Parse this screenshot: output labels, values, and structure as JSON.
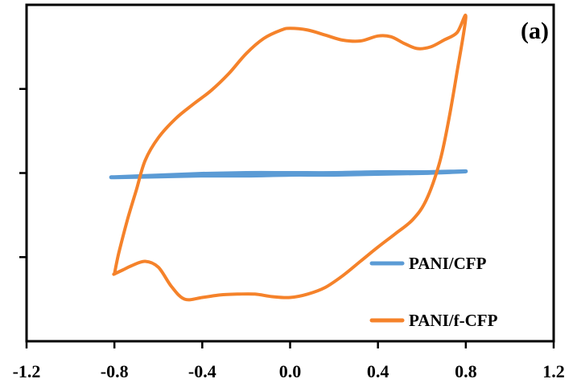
{
  "chart_data": {
    "type": "line",
    "panel_label": "(a)",
    "xlabel": "",
    "ylabel": "",
    "xlim": [
      -1.2,
      1.2
    ],
    "x_ticks": [
      "-1.2",
      "-0.8",
      "-0.4",
      "0.0",
      "0.4",
      "0.8",
      "1.2"
    ],
    "x_tick_values": [
      -1.2,
      -0.8,
      -0.4,
      0.0,
      0.4,
      0.8,
      1.2
    ],
    "ylim": [
      -2,
      2
    ],
    "y_ticks": [
      -1,
      0,
      1
    ],
    "y_tick_labels_visible": false,
    "grid": false,
    "legend": {
      "position": "bottom-right"
    },
    "series": [
      {
        "name": "PANI/CFP",
        "color": "#5b9bd5",
        "x": [
          -0.8,
          -0.6,
          -0.4,
          -0.2,
          0.0,
          0.2,
          0.4,
          0.6,
          0.8,
          0.6,
          0.4,
          0.2,
          0.0,
          -0.2,
          -0.4,
          -0.6,
          -0.8
        ],
        "y": [
          -0.05,
          -0.03,
          -0.01,
          0.0,
          0.0,
          0.0,
          0.01,
          0.01,
          0.02,
          0.0,
          -0.01,
          -0.02,
          -0.02,
          -0.03,
          -0.03,
          -0.04,
          -0.05
        ]
      },
      {
        "name": "PANI/f-CFP",
        "color": "#f5822a",
        "x": [
          -0.8,
          -0.78,
          -0.74,
          -0.7,
          -0.66,
          -0.6,
          -0.52,
          -0.44,
          -0.36,
          -0.28,
          -0.2,
          -0.12,
          -0.04,
          0.0,
          0.08,
          0.16,
          0.24,
          0.32,
          0.4,
          0.46,
          0.52,
          0.58,
          0.64,
          0.7,
          0.76,
          0.8,
          0.76,
          0.72,
          0.68,
          0.62,
          0.56,
          0.48,
          0.4,
          0.32,
          0.24,
          0.16,
          0.08,
          0.0,
          -0.08,
          -0.16,
          -0.24,
          -0.32,
          -0.4,
          -0.48,
          -0.54,
          -0.6,
          -0.66,
          -0.72,
          -0.76,
          -0.8
        ],
        "y": [
          -1.2,
          -0.95,
          -0.55,
          -0.2,
          0.15,
          0.42,
          0.65,
          0.82,
          0.98,
          1.18,
          1.42,
          1.6,
          1.7,
          1.72,
          1.7,
          1.64,
          1.58,
          1.57,
          1.63,
          1.62,
          1.54,
          1.48,
          1.5,
          1.58,
          1.67,
          1.86,
          1.2,
          0.6,
          0.12,
          -0.32,
          -0.55,
          -0.72,
          -0.88,
          -1.05,
          -1.22,
          -1.36,
          -1.44,
          -1.48,
          -1.47,
          -1.44,
          -1.44,
          -1.45,
          -1.48,
          -1.5,
          -1.35,
          -1.12,
          -1.05,
          -1.1,
          -1.15,
          -1.2
        ]
      }
    ]
  }
}
